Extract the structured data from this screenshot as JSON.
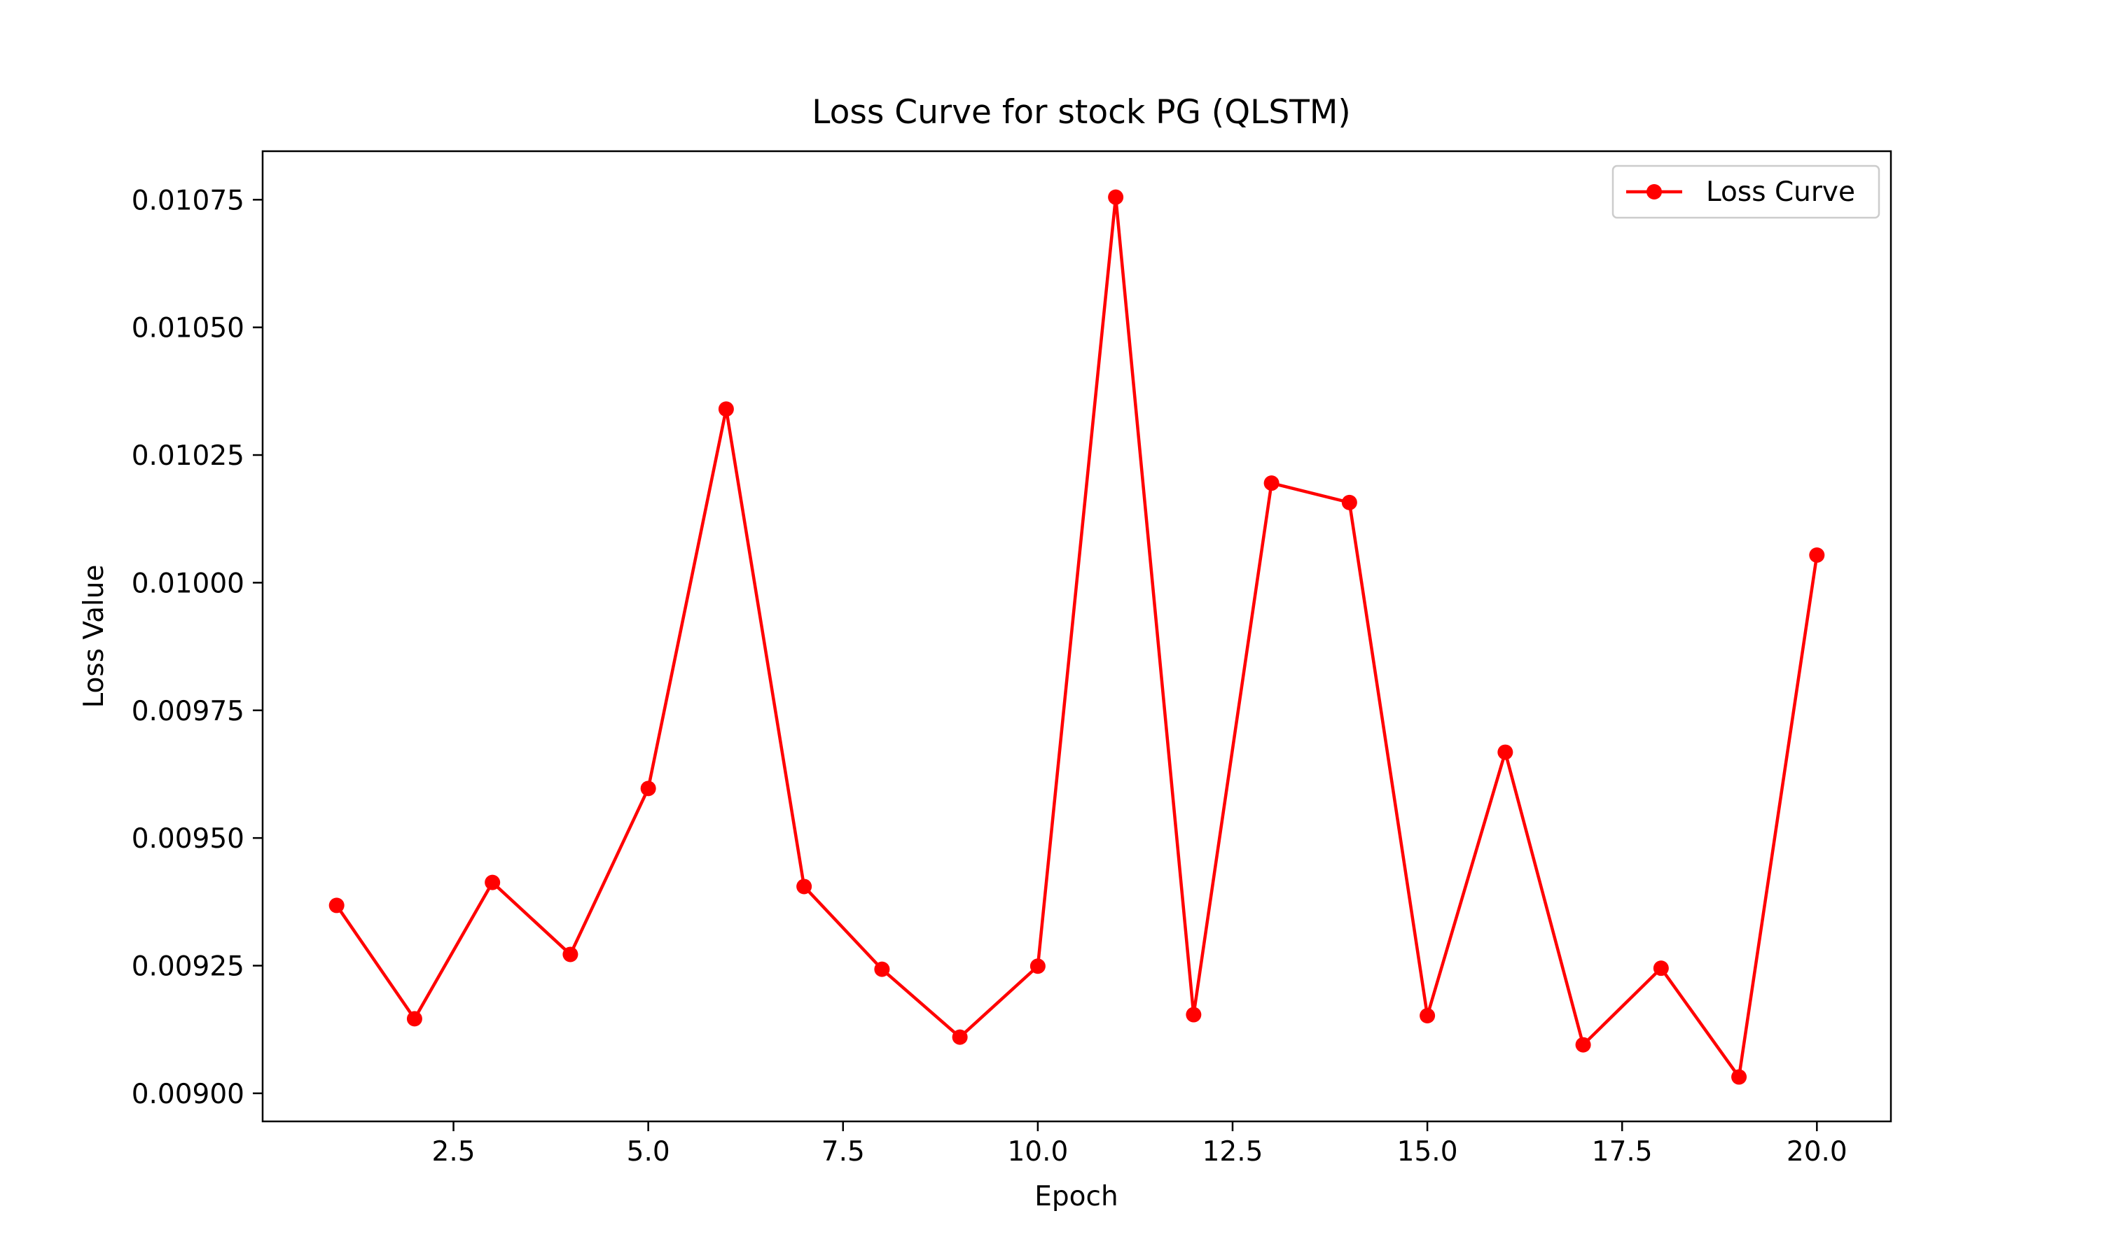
{
  "chart_data": {
    "type": "line",
    "title": "Loss Curve for stock PG (QLSTM)",
    "xlabel": "Epoch",
    "ylabel": "Loss Value",
    "x": [
      1,
      2,
      3,
      4,
      5,
      6,
      7,
      8,
      9,
      10,
      11,
      12,
      13,
      14,
      15,
      16,
      17,
      18,
      19,
      20
    ],
    "series": [
      {
        "name": "Loss Curve",
        "color": "#ff0000",
        "marker": "circle",
        "values": [
          0.009368,
          0.009146,
          0.009413,
          0.009272,
          0.009597,
          0.01034,
          0.009405,
          0.009243,
          0.00911,
          0.009249,
          0.010755,
          0.009154,
          0.010195,
          0.010157,
          0.009152,
          0.009668,
          0.009095,
          0.009245,
          0.009032,
          0.010054
        ]
      }
    ],
    "xlim": [
      0.05,
      20.95
    ],
    "ylim": [
      0.008945,
      0.010845
    ],
    "x_ticks": [
      2.5,
      5.0,
      7.5,
      10.0,
      12.5,
      15.0,
      17.5,
      20.0
    ],
    "x_tick_labels": [
      "2.5",
      "5.0",
      "7.5",
      "10.0",
      "12.5",
      "15.0",
      "17.5",
      "20.0"
    ],
    "y_ticks": [
      0.009,
      0.00925,
      0.0095,
      0.00975,
      0.01,
      0.01025,
      0.0105,
      0.01075
    ],
    "y_tick_labels": [
      "0.00900",
      "0.00925",
      "0.00950",
      "0.00975",
      "0.01000",
      "0.01025",
      "0.01050",
      "0.01075"
    ],
    "grid": false,
    "legend_position": "top-right"
  }
}
